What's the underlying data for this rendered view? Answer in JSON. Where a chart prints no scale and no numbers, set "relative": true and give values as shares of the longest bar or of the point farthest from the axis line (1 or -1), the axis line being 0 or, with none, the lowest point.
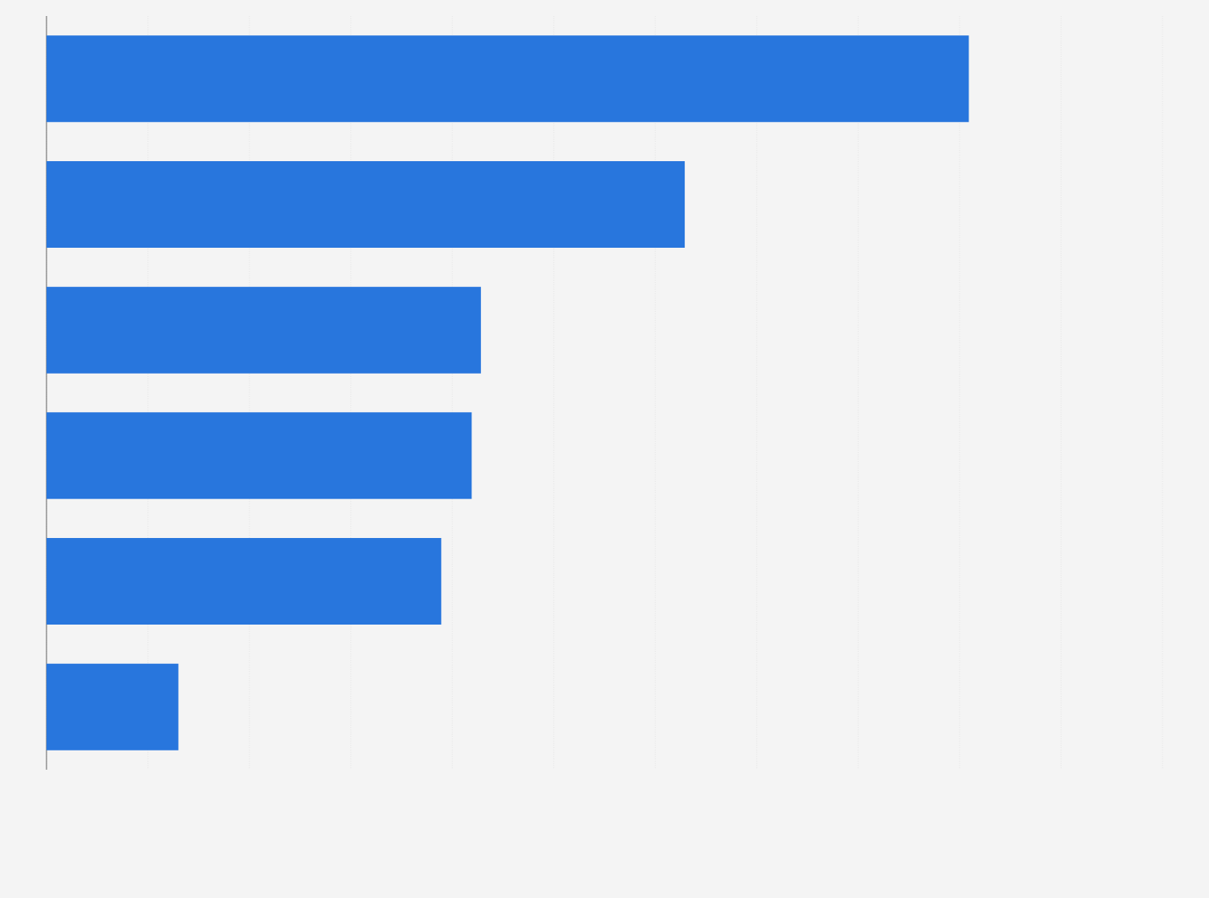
{
  "chart_data": {
    "type": "bar",
    "orientation": "horizontal",
    "relative": true,
    "categories": [
      null,
      null,
      null,
      null,
      null,
      null
    ],
    "values": [
      1,
      0.692,
      0.471,
      0.461,
      0.428,
      0.143
    ],
    "color": "#2876dd",
    "grid": "x"
  }
}
